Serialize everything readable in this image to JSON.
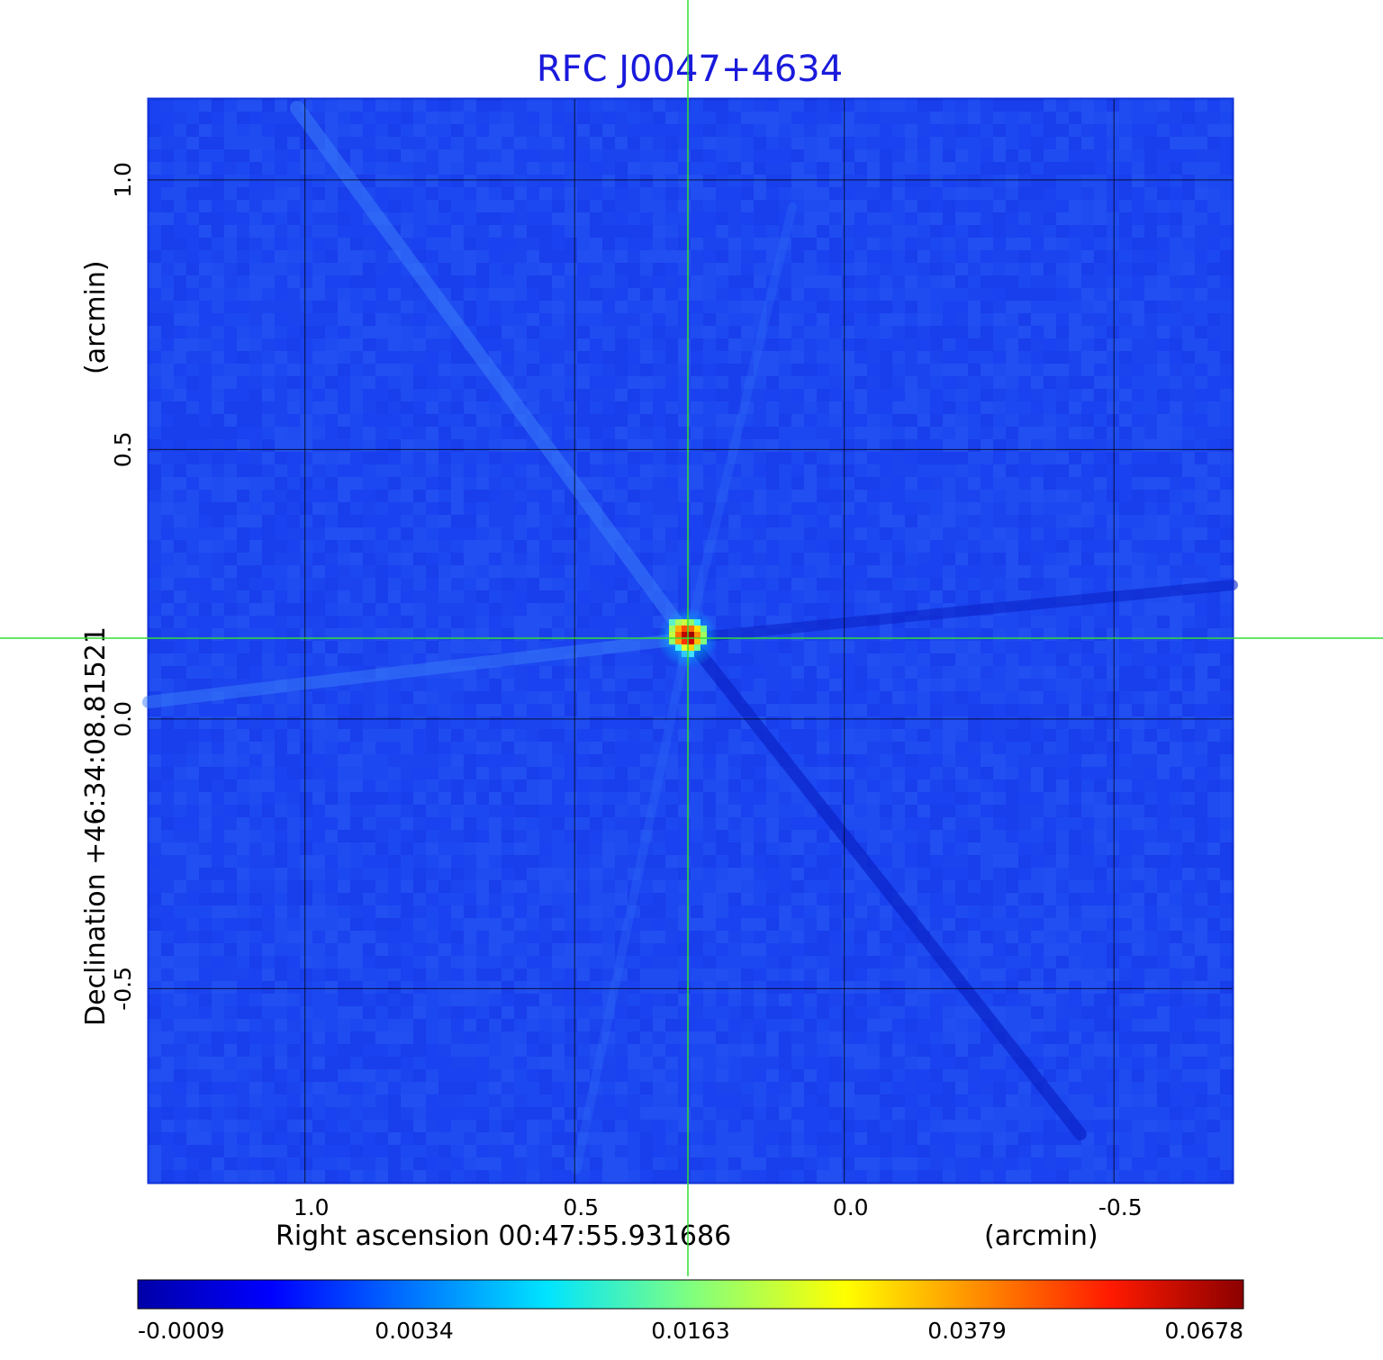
{
  "chart_data": {
    "type": "heatmap",
    "title": "RFC J0047+4634",
    "xlabel": "Right ascension  00:47:55.931686",
    "xunit": "(arcmin)",
    "ylabel": "Declination  +46:34:08.81521",
    "yunit": "(arcmin)",
    "x_range": [
      1.29,
      -0.72
    ],
    "y_range": [
      -0.86,
      1.15
    ],
    "x_ticks": [
      1.0,
      0.5,
      0.0,
      -0.5
    ],
    "x_tick_labels": [
      "1.0",
      "0.5",
      "0.0",
      "-0.5"
    ],
    "y_ticks": [
      1.0,
      0.5,
      0.0,
      -0.5
    ],
    "y_tick_labels": [
      "1.0",
      "0.5",
      "0.0",
      "-0.5"
    ],
    "grid": true,
    "crosshair": {
      "x": 0.29,
      "y": 0.15
    },
    "peak": {
      "x": 0.29,
      "y": 0.15
    },
    "colorscale": "jet",
    "colorbar_ticks": [
      "-0.0009",
      "0.0034",
      "0.0163",
      "0.0379",
      "0.0678"
    ],
    "colorbar_stops": [
      {
        "frac": 0.0,
        "color": "#0000a8"
      },
      {
        "frac": 0.12,
        "color": "#0000ff"
      },
      {
        "frac": 0.37,
        "color": "#00e4ff"
      },
      {
        "frac": 0.5,
        "color": "#80ff80"
      },
      {
        "frac": 0.64,
        "color": "#ffff00"
      },
      {
        "frac": 0.88,
        "color": "#ff1a00"
      },
      {
        "frac": 1.0,
        "color": "#8b0000"
      }
    ],
    "background_color": "#1a44f0",
    "crosshair_color": "#33dd33"
  }
}
